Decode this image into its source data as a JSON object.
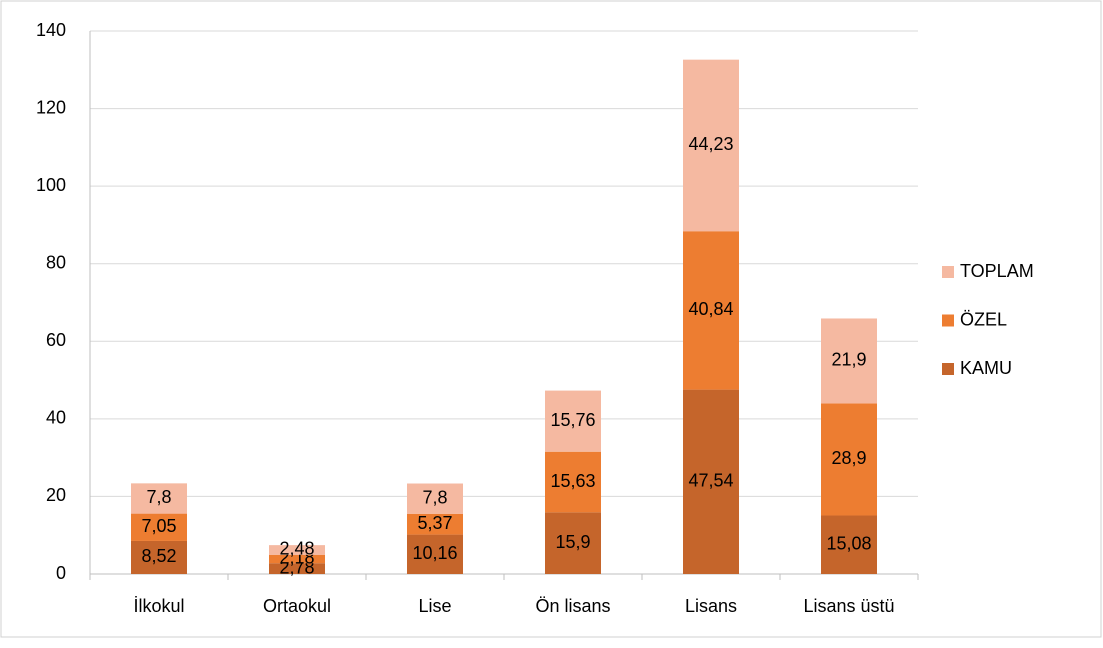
{
  "chart_data": {
    "type": "stacked_bar",
    "categories": [
      "İlkokul",
      "Ortaokul",
      "Lise",
      "Ön lisans",
      "Lisans",
      "Lisans üstü"
    ],
    "series": [
      {
        "name": "KAMU",
        "color": "#c5652b",
        "values": [
          8.52,
          2.78,
          10.16,
          15.9,
          47.54,
          15.08
        ],
        "value_labels": [
          "8,52",
          "2,78",
          "10,16",
          "15,9",
          "47,54",
          "15,08"
        ]
      },
      {
        "name": "ÖZEL",
        "color": "#ed7d31",
        "values": [
          7.05,
          2.18,
          5.37,
          15.63,
          40.84,
          28.9
        ],
        "value_labels": [
          "7,05",
          "2,18",
          "5,37",
          "15,63",
          "40,84",
          "28,9"
        ]
      },
      {
        "name": "TOPLAM",
        "color": "#f5b9a1",
        "values": [
          7.8,
          2.48,
          7.8,
          15.76,
          44.23,
          21.9
        ],
        "value_labels": [
          "7,8",
          "2,48",
          "7,8",
          "15,76",
          "44,23",
          "21,9"
        ]
      }
    ],
    "ylim": [
      0,
      140
    ],
    "yticks": [
      0,
      20,
      40,
      60,
      80,
      100,
      120,
      140
    ],
    "grid": true,
    "legend": "right"
  }
}
